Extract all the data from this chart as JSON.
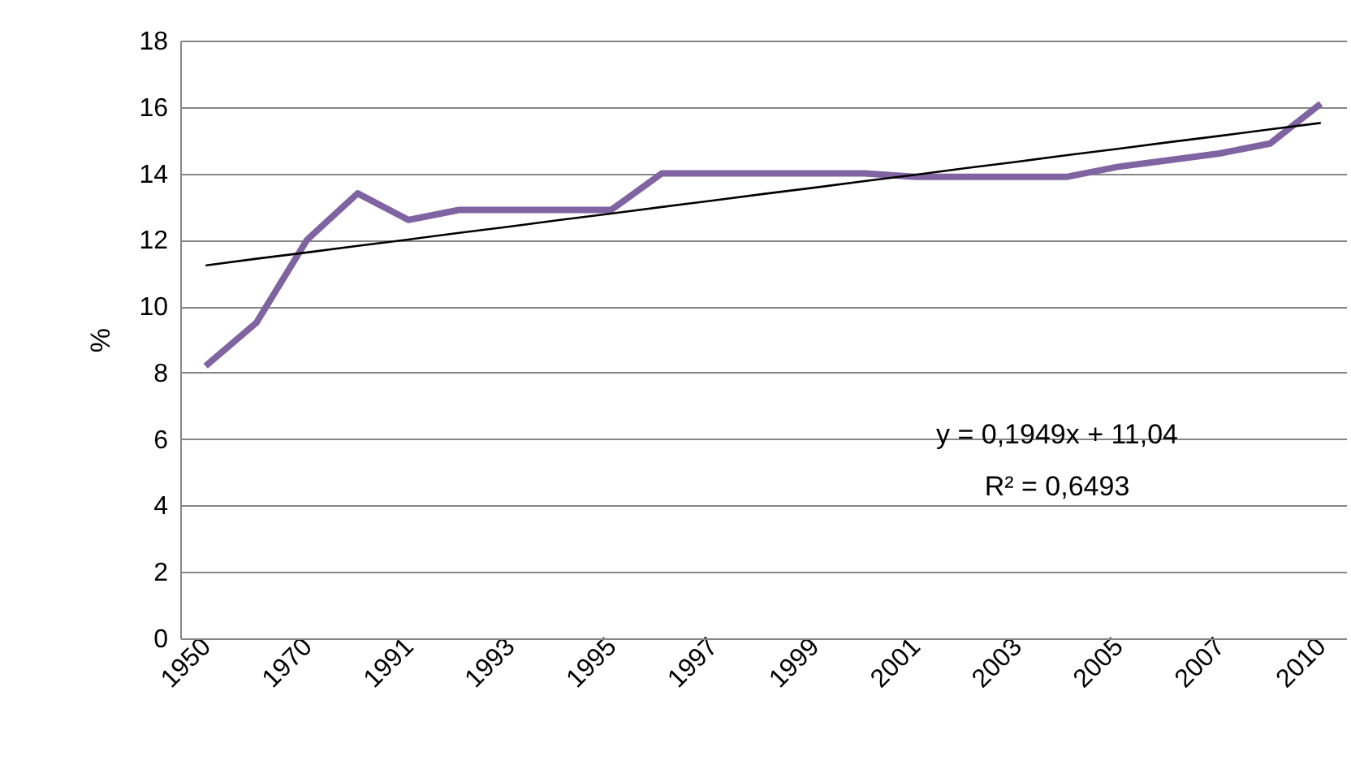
{
  "chart_data": {
    "type": "line",
    "ylabel": "%",
    "categories": [
      "1950",
      null,
      "1970",
      null,
      "1991",
      null,
      "1993",
      null,
      "1995",
      null,
      "1997",
      null,
      "1999",
      null,
      "2001",
      null,
      "2003",
      null,
      "2005",
      null,
      "2007",
      null,
      "2010"
    ],
    "series": [
      {
        "color": "#8064a2",
        "values": [
          8.2,
          9.5,
          12.0,
          13.4,
          12.6,
          12.9,
          12.9,
          12.9,
          12.9,
          14.0,
          14.0,
          14.0,
          14.0,
          14.0,
          13.9,
          13.9,
          13.9,
          13.9,
          14.2,
          14.4,
          14.6,
          14.9,
          16.1
        ]
      },
      {
        "type": "line",
        "color": "#000000",
        "values": [
          11.23,
          11.43,
          11.62,
          11.82,
          12.01,
          12.21,
          12.4,
          12.6,
          12.79,
          12.99,
          13.18,
          13.38,
          13.57,
          13.77,
          13.96,
          14.16,
          14.35,
          14.55,
          14.74,
          14.94,
          15.13,
          15.33,
          15.52
        ]
      }
    ],
    "ylim": [
      0,
      18
    ],
    "yticks": [
      0,
      2,
      4,
      6,
      8,
      10,
      12,
      14,
      16,
      18
    ],
    "grid": "y",
    "marker": "none",
    "line_style": "solid",
    "annotations": [
      "y = 0,1949x + 11,04",
      "R² = 0,6493"
    ]
  }
}
